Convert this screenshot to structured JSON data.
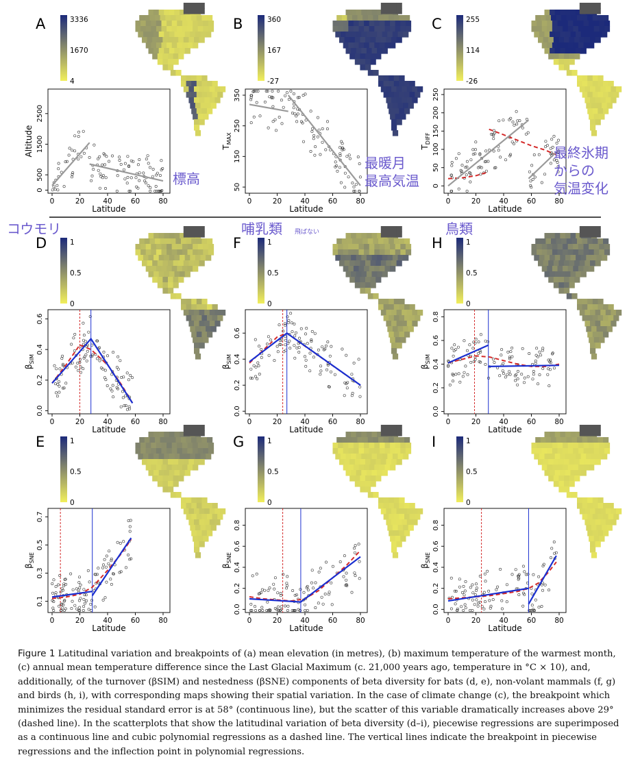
{
  "panels": [
    {
      "letter": "A",
      "scale": [
        "3336",
        "1670",
        "4"
      ],
      "ylabel_main": "Altitude",
      "ylabel_sub": "",
      "xlabel": "Latitude",
      "yticks": [
        {
          "v": 0,
          "t": "0"
        },
        {
          "v": 500,
          "t": "500"
        },
        {
          "v": 1500,
          "t": "1500"
        },
        {
          "v": 2500,
          "t": "2500"
        }
      ],
      "ylim": [
        -100,
        3300
      ],
      "xticks": [
        "0",
        "20",
        "40",
        "60",
        "80"
      ],
      "map": "elevation",
      "annotation": {
        "lines": [
          "標高"
        ]
      }
    },
    {
      "letter": "B",
      "scale": [
        "360",
        "167",
        "-27"
      ],
      "ylabel_main": "T",
      "ylabel_sub": "MAX",
      "xlabel": "Latitude",
      "yticks": [
        {
          "v": 50,
          "t": "50"
        },
        {
          "v": 150,
          "t": "150"
        },
        {
          "v": 250,
          "t": "250"
        },
        {
          "v": 350,
          "t": "350"
        }
      ],
      "ylim": [
        30,
        370
      ],
      "xticks": [
        "0",
        "20",
        "40",
        "60",
        "80"
      ],
      "map": "tmax",
      "annotation": {
        "lines": [
          "最暖月",
          "最高気温"
        ]
      }
    },
    {
      "letter": "C",
      "scale": [
        "255",
        "114",
        "-26"
      ],
      "ylabel_main": "T",
      "ylabel_sub": "DIFF",
      "xlabel": "Latitude",
      "yticks": [
        {
          "v": 0,
          "t": "0"
        },
        {
          "v": 50,
          "t": "50"
        },
        {
          "v": 100,
          "t": "100"
        },
        {
          "v": 150,
          "t": "150"
        },
        {
          "v": 200,
          "t": "200"
        },
        {
          "v": 250,
          "t": "250"
        }
      ],
      "ylim": [
        -20,
        265
      ],
      "xticks": [
        "0",
        "20",
        "40",
        "60",
        "80"
      ],
      "map": "tdiff",
      "annotation": {
        "lines": [
          "最終氷期",
          "からの",
          "気温変化"
        ]
      }
    },
    {
      "letter": "D",
      "scale": [
        "1",
        "0.5",
        "0"
      ],
      "ylabel_main": "β",
      "ylabel_sub": "SIM",
      "xlabel": "Latitude",
      "yticks": [
        {
          "v": 0,
          "t": "0.0"
        },
        {
          "v": 0.2,
          "t": "0.2"
        },
        {
          "v": 0.4,
          "t": "0.4"
        },
        {
          "v": 0.6,
          "t": "0.6"
        }
      ],
      "ylim": [
        -0.02,
        0.66
      ],
      "xticks": [
        "0",
        "20",
        "40",
        "60",
        "80"
      ],
      "map": "bats_sim",
      "group_label": "コウモリ",
      "group_sub": ""
    },
    {
      "letter": "F",
      "scale": [
        "1",
        "0.5",
        "0"
      ],
      "ylabel_main": "β",
      "ylabel_sub": "SIM",
      "xlabel": "Latitude",
      "yticks": [
        {
          "v": 0,
          "t": "0.0"
        },
        {
          "v": 0.2,
          "t": "0.2"
        },
        {
          "v": 0.4,
          "t": "0.4"
        },
        {
          "v": 0.6,
          "t": "0.6"
        }
      ],
      "ylim": [
        -0.02,
        0.78
      ],
      "xticks": [
        "0",
        "20",
        "40",
        "60",
        "80"
      ],
      "map": "mammals_sim",
      "group_label": "哺乳類",
      "group_sub": "飛ばない"
    },
    {
      "letter": "H",
      "scale": [
        "1",
        "0.5",
        "0"
      ],
      "ylabel_main": "β",
      "ylabel_sub": "SIM",
      "xlabel": "Latitude",
      "yticks": [
        {
          "v": 0,
          "t": "0.0"
        },
        {
          "v": 0.2,
          "t": "0.2"
        },
        {
          "v": 0.4,
          "t": "0.4"
        },
        {
          "v": 0.6,
          "t": "0.6"
        },
        {
          "v": 0.8,
          "t": "0.8"
        }
      ],
      "ylim": [
        -0.02,
        0.86
      ],
      "xticks": [
        "0",
        "20",
        "40",
        "60",
        "80"
      ],
      "map": "birds_sim",
      "group_label": "鳥類",
      "group_sub": ""
    },
    {
      "letter": "E",
      "scale": [
        "1",
        "0.5",
        "0"
      ],
      "ylabel_main": "β",
      "ylabel_sub": "SNE",
      "xlabel": "Latitude",
      "yticks": [
        {
          "v": 0.1,
          "t": "0.1"
        },
        {
          "v": 0.3,
          "t": "0.3"
        },
        {
          "v": 0.5,
          "t": "0.5"
        },
        {
          "v": 0.7,
          "t": "0.7"
        }
      ],
      "ylim": [
        0.02,
        0.76
      ],
      "xticks": [
        "0",
        "20",
        "40",
        "60",
        "80"
      ],
      "map": "bats_sne"
    },
    {
      "letter": "G",
      "scale": [
        "1",
        "0.5",
        "0"
      ],
      "ylabel_main": "β",
      "ylabel_sub": "SNE",
      "xlabel": "Latitude",
      "yticks": [
        {
          "v": 0,
          "t": "0.0"
        },
        {
          "v": 0.2,
          "t": "0.2"
        },
        {
          "v": 0.4,
          "t": "0.4"
        },
        {
          "v": 0.6,
          "t": "0.6"
        },
        {
          "v": 0.8,
          "t": "0.8"
        }
      ],
      "ylim": [
        -0.03,
        0.96
      ],
      "xticks": [
        "0",
        "20",
        "40",
        "60",
        "80"
      ],
      "map": "mammals_sne"
    },
    {
      "letter": "I",
      "scale": [
        "1",
        "0.5",
        "0"
      ],
      "ylabel_main": "β",
      "ylabel_sub": "SNE",
      "xlabel": "Latitude",
      "yticks": [
        {
          "v": 0,
          "t": "0.0"
        },
        {
          "v": 0.2,
          "t": "0.2"
        },
        {
          "v": 0.4,
          "t": "0.4"
        },
        {
          "v": 0.6,
          "t": "0.6"
        },
        {
          "v": 0.8,
          "t": "0.8"
        }
      ],
      "ylim": [
        -0.03,
        0.96
      ],
      "xticks": [
        "0",
        "20",
        "40",
        "60",
        "80"
      ],
      "map": "birds_sne"
    }
  ],
  "chart_data": [
    {
      "type": "scatter",
      "panel": "A",
      "xlabel": "Latitude",
      "ylabel": "Altitude",
      "xlim": [
        0,
        80
      ],
      "piecewise": [
        {
          "x": [
            0,
            27
          ],
          "y": [
            150,
            1550
          ]
        },
        {
          "x": [
            27,
            80
          ],
          "y": [
            850,
            300
          ]
        }
      ]
    },
    {
      "type": "scatter",
      "panel": "B",
      "xlabel": "Latitude",
      "ylabel": "T MAX",
      "xlim": [
        0,
        80
      ],
      "piecewise": [
        {
          "x": [
            0,
            28
          ],
          "y": [
            320,
            297
          ]
        },
        {
          "x": [
            28,
            80
          ],
          "y": [
            350,
            55
          ]
        }
      ]
    },
    {
      "type": "scatter",
      "panel": "C",
      "xlabel": "Latitude",
      "ylabel": "T DIFF",
      "xlim": [
        0,
        80
      ],
      "piecewise": [
        {
          "x": [
            0,
            58
          ],
          "y": [
            0,
            180
          ]
        },
        {
          "x": [
            58,
            80
          ],
          "y": [
            20,
            100
          ]
        }
      ],
      "cubic": {
        "x": [
          0,
          10,
          20,
          29,
          29.5,
          40,
          50,
          60,
          70,
          78
        ],
        "y": [
          20,
          22,
          28,
          38,
          155,
          140,
          125,
          110,
          98,
          85
        ]
      },
      "breakpoint": 58,
      "inflection": 29
    },
    {
      "type": "scatter",
      "panel": "D",
      "xlabel": "Latitude",
      "ylabel": "β SIM",
      "xlim": [
        0,
        80
      ],
      "piecewise": [
        {
          "x": [
            0,
            28,
            58
          ],
          "y": [
            0.18,
            0.47,
            0.05
          ]
        }
      ],
      "cubic": {
        "x": [
          0,
          10,
          20,
          28,
          40,
          50,
          58
        ],
        "y": [
          0.18,
          0.3,
          0.43,
          0.4,
          0.3,
          0.17,
          0.05
        ]
      },
      "breakpoint": 28,
      "inflection": 20
    },
    {
      "type": "scatter",
      "panel": "F",
      "xlabel": "Latitude",
      "ylabel": "β SIM",
      "xlim": [
        0,
        80
      ],
      "piecewise": [
        {
          "x": [
            0,
            27,
            80
          ],
          "y": [
            0.38,
            0.6,
            0.2
          ]
        }
      ],
      "cubic": {
        "x": [
          0,
          10,
          20,
          27,
          40,
          60,
          80
        ],
        "y": [
          0.37,
          0.47,
          0.57,
          0.6,
          0.5,
          0.35,
          0.2
        ]
      },
      "breakpoint": 27,
      "inflection": 24
    },
    {
      "type": "scatter",
      "panel": "H",
      "xlabel": "Latitude",
      "ylabel": "β SIM",
      "xlim": [
        0,
        80
      ],
      "piecewise": [
        {
          "x": [
            0,
            29
          ],
          "y": [
            0.41,
            0.56
          ]
        },
        {
          "x": [
            29,
            80
          ],
          "y": [
            0.38,
            0.39
          ]
        }
      ],
      "cubic": {
        "x": [
          0,
          10,
          20,
          30,
          40,
          50,
          60,
          70,
          80
        ],
        "y": [
          0.41,
          0.44,
          0.47,
          0.46,
          0.43,
          0.4,
          0.38,
          0.38,
          0.4
        ]
      },
      "breakpoint": 29,
      "inflection": 19
    },
    {
      "type": "scatter",
      "panel": "E",
      "xlabel": "Latitude",
      "ylabel": "β SNE",
      "xlim": [
        0,
        80
      ],
      "piecewise": [
        {
          "x": [
            0,
            29
          ],
          "y": [
            0.13,
            0.17
          ]
        },
        {
          "x": [
            29,
            57
          ],
          "y": [
            0.14,
            0.55
          ]
        }
      ],
      "cubic": {
        "x": [
          0,
          10,
          20,
          29,
          40,
          50,
          57
        ],
        "y": [
          0.12,
          0.13,
          0.15,
          0.2,
          0.32,
          0.44,
          0.54
        ]
      },
      "breakpoint": 29,
      "inflection": 6
    },
    {
      "type": "scatter",
      "panel": "G",
      "xlabel": "Latitude",
      "ylabel": "β SNE",
      "xlim": [
        0,
        80
      ],
      "piecewise": [
        {
          "x": [
            0,
            37,
            80
          ],
          "y": [
            0.1,
            0.07,
            0.5
          ]
        }
      ],
      "cubic": {
        "x": [
          0,
          10,
          20,
          30,
          40,
          50,
          60,
          70,
          80
        ],
        "y": [
          0.12,
          0.1,
          0.09,
          0.08,
          0.1,
          0.18,
          0.3,
          0.42,
          0.56
        ]
      },
      "breakpoint": 37,
      "inflection": 24
    },
    {
      "type": "scatter",
      "panel": "I",
      "xlabel": "Latitude",
      "ylabel": "β SNE",
      "xlim": [
        0,
        80
      ],
      "piecewise": [
        {
          "x": [
            0,
            58
          ],
          "y": [
            0.08,
            0.2
          ]
        },
        {
          "x": [
            58,
            78
          ],
          "y": [
            0.05,
            0.51
          ]
        }
      ],
      "cubic": {
        "x": [
          0,
          10,
          20,
          30,
          40,
          50,
          58,
          65,
          72,
          78
        ],
        "y": [
          0.1,
          0.11,
          0.12,
          0.13,
          0.15,
          0.17,
          0.2,
          0.25,
          0.35,
          0.45
        ]
      },
      "breakpoint": 58,
      "inflection": 24
    }
  ],
  "caption": {
    "label": "Figure 1",
    "text": "Latitudinal variation and breakpoints of (a) mean elevation (in metres), (b) maximum temperature of the warmest month, (c) annual mean temperature difference since the Last Glacial Maximum (c. 21,000 years ago, temperature in °C × 10), and, additionally, of the turnover (βSIM) and nestedness (βSNE) components of beta diversity for bats (d, e), non-volant mammals (f, g) and birds (h, i), with corresponding maps showing their spatial variation. In the case of climate change (c), the breakpoint which minimizes the residual standard error is at 58° (continuous line), but the scatter of this variable dramatically increases above 29° (dashed line). In the scatterplots that show the latitudinal variation of beta diversity (d–i), piecewise regressions are superimposed as a continuous line and cubic polynomial regressions as a dashed line. The vertical lines indicate the breakpoint in piecewise regressions and the inflection point in polynomial regressions."
  },
  "colors": {
    "low": "#f2ef5c",
    "mid": "#8a8c6a",
    "high": "#1c2a7a",
    "fit_gray": "#9a9a9a",
    "fit_blue": "#1a2fd0",
    "fit_red": "#d42a2a",
    "annotation": "#6a5acd"
  }
}
